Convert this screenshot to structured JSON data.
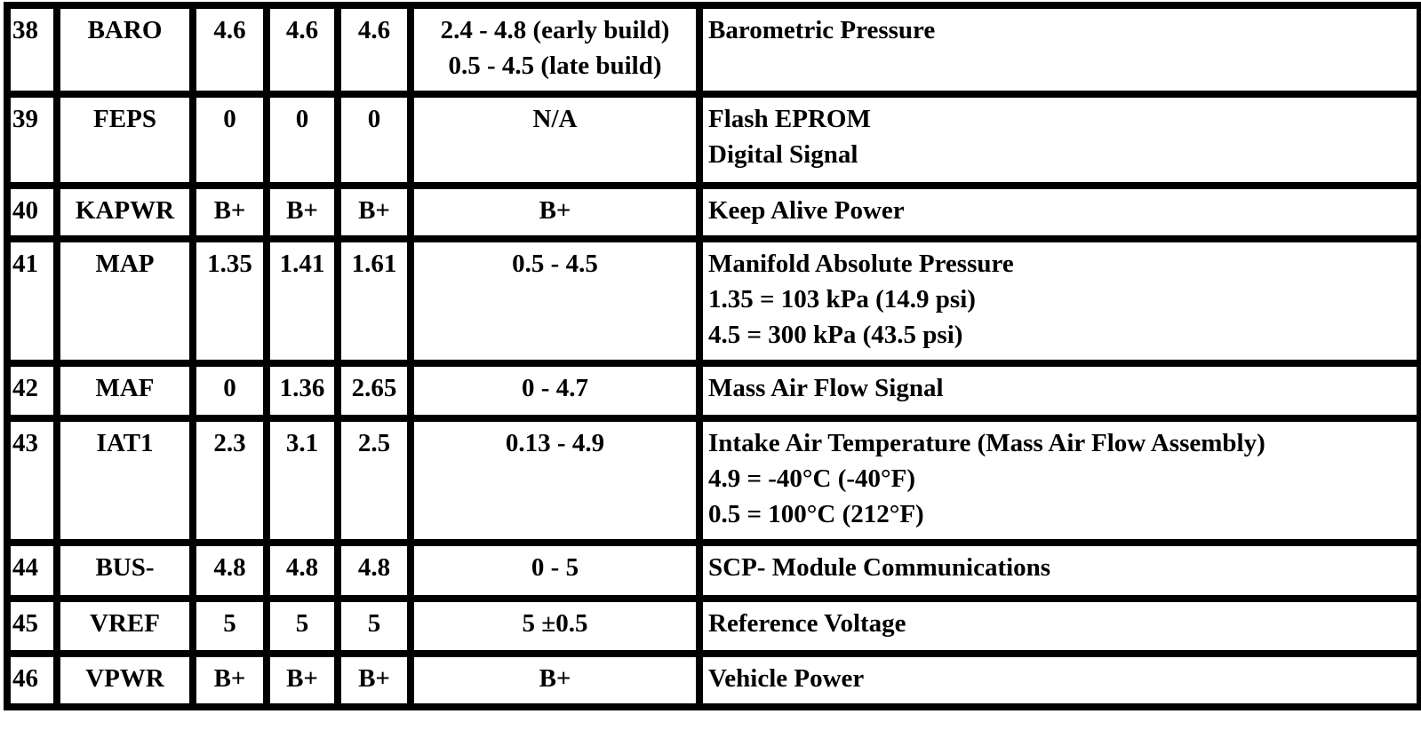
{
  "table": {
    "rows": [
      [
        "38",
        "BARO",
        "4.6",
        "4.6",
        "4.6",
        [
          "2.4 - 4.8 (early build)",
          "0.5 - 4.5 (late build)"
        ],
        [
          "Barometric Pressure"
        ]
      ],
      [
        "39",
        "FEPS",
        "0",
        "0",
        "0",
        [
          "N/A"
        ],
        [
          "Flash EPROM",
          "Digital Signal"
        ]
      ],
      [
        "40",
        "KAPWR",
        "B+",
        "B+",
        "B+",
        [
          "B+"
        ],
        [
          "Keep Alive Power"
        ]
      ],
      [
        "41",
        "MAP",
        "1.35",
        "1.41",
        "1.61",
        [
          "0.5 - 4.5"
        ],
        [
          "Manifold Absolute Pressure",
          "1.35 = 103 kPa (14.9 psi)",
          "4.5 = 300 kPa (43.5 psi)"
        ]
      ],
      [
        "42",
        "MAF",
        "0",
        "1.36",
        "2.65",
        [
          "0 - 4.7"
        ],
        [
          "Mass Air Flow Signal"
        ]
      ],
      [
        "43",
        "IAT1",
        "2.3",
        "3.1",
        "2.5",
        [
          "0.13 - 4.9"
        ],
        [
          "Intake Air Temperature (Mass Air Flow Assembly)",
          "4.9 = -40°C (-40°F)",
          "0.5 = 100°C (212°F)"
        ]
      ],
      [
        "44",
        "BUS-",
        "4.8",
        "4.8",
        "4.8",
        [
          "0 - 5"
        ],
        [
          "SCP- Module Communications"
        ]
      ],
      [
        "45",
        "VREF",
        "5",
        "5",
        "5",
        [
          "5 ±0.5"
        ],
        [
          "Reference Voltage"
        ]
      ],
      [
        "46",
        "VPWR",
        "B+",
        "B+",
        "B+",
        [
          "B+"
        ],
        [
          "Vehicle Power"
        ]
      ]
    ]
  }
}
